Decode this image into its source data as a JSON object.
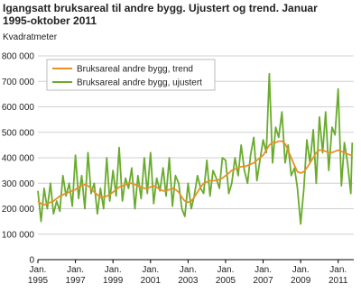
{
  "chart_data": {
    "type": "line",
    "title": "Igangsatt bruksareal til andre bygg. Ujustert og trend. Januar 1995-oktober 2011",
    "y_label": "Kvadratmeter",
    "x": [
      1995,
      1995.17,
      1995.33,
      1995.5,
      1995.67,
      1995.83,
      1996,
      1996.17,
      1996.33,
      1996.5,
      1996.67,
      1996.83,
      1997,
      1997.17,
      1997.33,
      1997.5,
      1997.67,
      1997.83,
      1998,
      1998.17,
      1998.33,
      1998.5,
      1998.67,
      1998.83,
      1999,
      1999.17,
      1999.33,
      1999.5,
      1999.67,
      1999.83,
      2000,
      2000.17,
      2000.33,
      2000.5,
      2000.67,
      2000.83,
      2001,
      2001.17,
      2001.33,
      2001.5,
      2001.67,
      2001.83,
      2002,
      2002.17,
      2002.33,
      2002.5,
      2002.67,
      2002.83,
      2003,
      2003.17,
      2003.33,
      2003.5,
      2003.67,
      2003.83,
      2004,
      2004.17,
      2004.33,
      2004.5,
      2004.67,
      2004.83,
      2005,
      2005.17,
      2005.33,
      2005.5,
      2005.67,
      2005.83,
      2006,
      2006.17,
      2006.33,
      2006.5,
      2006.67,
      2006.83,
      2007,
      2007.17,
      2007.33,
      2007.5,
      2007.67,
      2007.83,
      2008,
      2008.17,
      2008.33,
      2008.5,
      2008.67,
      2008.83,
      2009,
      2009.17,
      2009.33,
      2009.5,
      2009.67,
      2009.83,
      2010,
      2010.17,
      2010.33,
      2010.5,
      2010.67,
      2010.83,
      2011,
      2011.17,
      2011.33,
      2011.5,
      2011.67,
      2011.75
    ],
    "series": [
      {
        "name": "Bruksareal andre bygg, trend",
        "color": "#e8902a",
        "values": [
          230000,
          220000,
          215000,
          220000,
          225000,
          230000,
          240000,
          250000,
          255000,
          260000,
          265000,
          270000,
          275000,
          285000,
          290000,
          295000,
          290000,
          280000,
          265000,
          255000,
          245000,
          245000,
          250000,
          255000,
          265000,
          275000,
          285000,
          290000,
          295000,
          300000,
          300000,
          295000,
          290000,
          285000,
          280000,
          280000,
          285000,
          290000,
          285000,
          275000,
          270000,
          270000,
          275000,
          280000,
          275000,
          265000,
          245000,
          230000,
          225000,
          230000,
          245000,
          265000,
          285000,
          300000,
          305000,
          310000,
          310000,
          310000,
          315000,
          320000,
          330000,
          340000,
          350000,
          355000,
          360000,
          365000,
          365000,
          370000,
          375000,
          380000,
          390000,
          400000,
          410000,
          430000,
          450000,
          460000,
          460000,
          465000,
          465000,
          455000,
          430000,
          400000,
          370000,
          345000,
          340000,
          345000,
          360000,
          380000,
          400000,
          420000,
          430000,
          430000,
          425000,
          420000,
          420000,
          425000,
          430000,
          425000,
          420000,
          415000,
          410000,
          410000
        ]
      },
      {
        "name": "Bruksareal andre bygg, ujustert",
        "color": "#6aab2e",
        "values": [
          270000,
          150000,
          280000,
          200000,
          300000,
          180000,
          230000,
          190000,
          330000,
          250000,
          300000,
          210000,
          410000,
          240000,
          330000,
          200000,
          420000,
          260000,
          300000,
          180000,
          280000,
          200000,
          400000,
          230000,
          350000,
          250000,
          440000,
          230000,
          320000,
          280000,
          360000,
          200000,
          330000,
          240000,
          400000,
          260000,
          420000,
          220000,
          320000,
          270000,
          360000,
          250000,
          400000,
          210000,
          330000,
          300000,
          200000,
          170000,
          300000,
          200000,
          250000,
          330000,
          280000,
          260000,
          390000,
          250000,
          350000,
          320000,
          280000,
          400000,
          390000,
          260000,
          300000,
          400000,
          330000,
          450000,
          350000,
          300000,
          410000,
          480000,
          310000,
          390000,
          470000,
          420000,
          730000,
          380000,
          520000,
          480000,
          580000,
          380000,
          450000,
          330000,
          360000,
          280000,
          140000,
          280000,
          470000,
          380000,
          510000,
          300000,
          560000,
          420000,
          580000,
          350000,
          520000,
          490000,
          670000,
          290000,
          460000,
          380000,
          260000,
          460000
        ]
      }
    ],
    "xlim": [
      1995,
      2011.83
    ],
    "xticks": [
      {
        "value": 1995,
        "label": "Jan.\n1995"
      },
      {
        "value": 1997,
        "label": "Jan.\n1997"
      },
      {
        "value": 1999,
        "label": "Jan.\n1999"
      },
      {
        "value": 2001,
        "label": "Jan.\n2001"
      },
      {
        "value": 2003,
        "label": "Jan.\n2003"
      },
      {
        "value": 2005,
        "label": "Jan.\n2005"
      },
      {
        "value": 2007,
        "label": "Jan.\n2007"
      },
      {
        "value": 2009,
        "label": "Jan.\n2009"
      },
      {
        "value": 2011,
        "label": "Jan.\n2011"
      }
    ],
    "ylim": [
      0,
      800000
    ],
    "yticks": [
      0,
      {
        "value": 100000,
        "label": "100 000"
      },
      {
        "value": 200000,
        "label": "200 000"
      },
      {
        "value": 300000,
        "label": "300 000"
      },
      {
        "value": 400000,
        "label": "400 000"
      },
      {
        "value": 500000,
        "label": "500 000"
      },
      {
        "value": 600000,
        "label": "600 000"
      },
      {
        "value": 700000,
        "label": "700 000"
      },
      {
        "value": 800000,
        "label": "800 000"
      }
    ],
    "grid": true
  }
}
